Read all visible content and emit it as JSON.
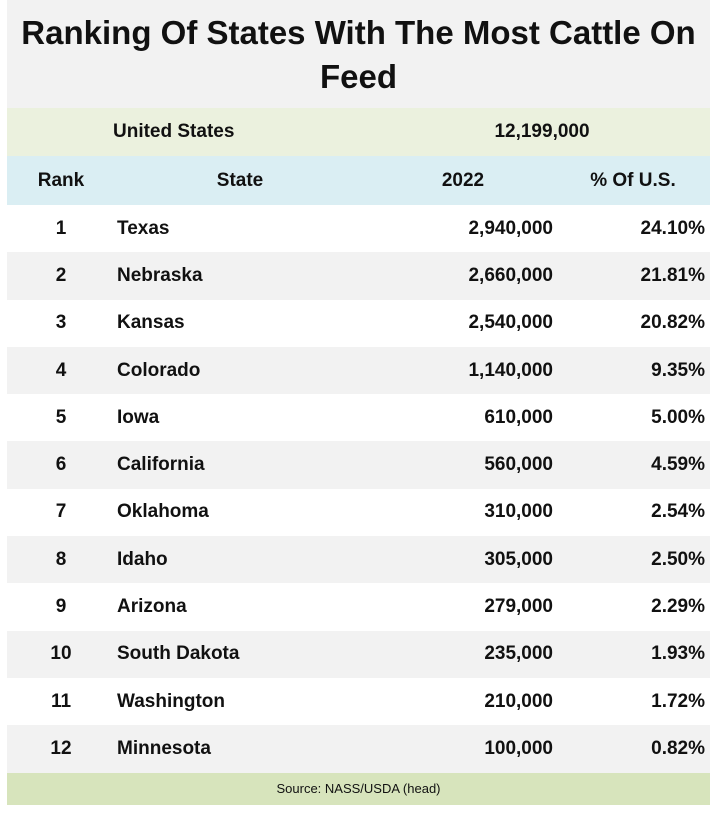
{
  "chart_data": {
    "type": "table",
    "title": "Ranking Of States With The Most Cattle On Feed",
    "total": {
      "label": "United States",
      "value": "12,199,000"
    },
    "columns": [
      "Rank",
      "State",
      "2022",
      "% Of U.S."
    ],
    "rows": [
      [
        "1",
        "Texas",
        "2,940,000",
        "24.10%"
      ],
      [
        "2",
        "Nebraska",
        "2,660,000",
        "21.81%"
      ],
      [
        "3",
        "Kansas",
        "2,540,000",
        "20.82%"
      ],
      [
        "4",
        "Colorado",
        "1,140,000",
        "9.35%"
      ],
      [
        "5",
        "Iowa",
        "610,000",
        "5.00%"
      ],
      [
        "6",
        "California",
        "560,000",
        "4.59%"
      ],
      [
        "7",
        "Oklahoma",
        "310,000",
        "2.54%"
      ],
      [
        "8",
        "Idaho",
        "305,000",
        "2.50%"
      ],
      [
        "9",
        "Arizona",
        "279,000",
        "2.29%"
      ],
      [
        "10",
        "South Dakota",
        "235,000",
        "1.93%"
      ],
      [
        "11",
        "Washington",
        "210,000",
        "1.72%"
      ],
      [
        "12",
        "Minnesota",
        "100,000",
        "0.82%"
      ]
    ],
    "source": "Source:  NASS/USDA (head)",
    "colors": {
      "title_bg": "#f2f2f2",
      "total_bg": "#ebf1de",
      "header_bg": "#daeef3",
      "alt_row_bg": "#f2f2f2",
      "source_bg": "#d7e4bc"
    }
  }
}
